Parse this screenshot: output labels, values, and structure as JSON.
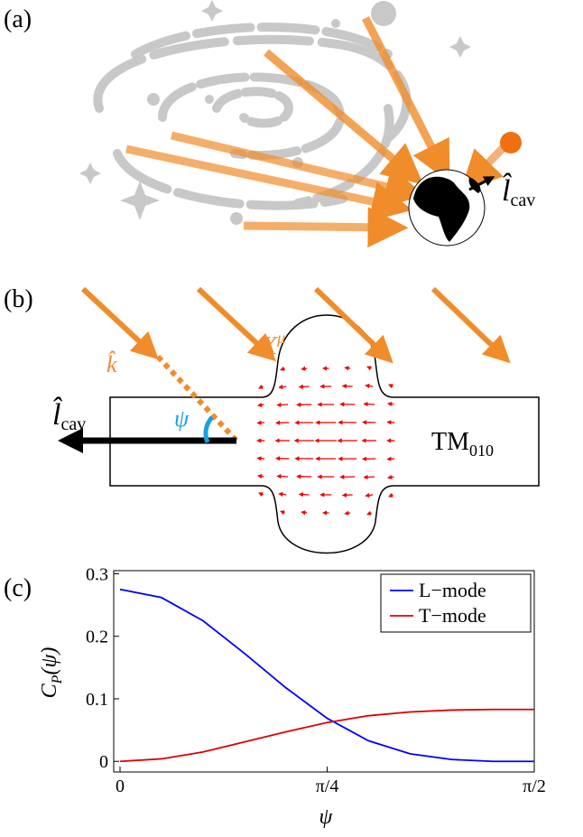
{
  "panel_a": {
    "label": "(a)",
    "l_hat": "l̂",
    "l_sub": "cav"
  },
  "panel_b": {
    "label": "(b)",
    "x": "X",
    "x_sup": "μ",
    "k_hat": "k̂",
    "psi": "ψ",
    "l_hat": "l̂",
    "l_sub": "cav",
    "mode": "TM",
    "mode_sub": "010"
  },
  "chart_data": {
    "type": "line",
    "panel_label": "(c)",
    "y_label": "C",
    "y_label_sub": "P",
    "y_label_rest": "(ψ)",
    "x_label": "ψ",
    "x": [
      0,
      0.157,
      0.314,
      0.471,
      0.628,
      0.785,
      0.942,
      1.1,
      1.257,
      1.414,
      1.571
    ],
    "series": [
      {
        "name": "L−mode",
        "color": "#0000ff",
        "values": [
          0.275,
          0.262,
          0.225,
          0.173,
          0.118,
          0.069,
          0.033,
          0.012,
          0.003,
          0,
          0
        ]
      },
      {
        "name": "T−mode",
        "color": "#e00000",
        "values": [
          0,
          0.004,
          0.015,
          0.031,
          0.047,
          0.062,
          0.073,
          0.079,
          0.082,
          0.083,
          0.083
        ]
      }
    ],
    "xlim": [
      -0.024,
      1.5708
    ],
    "ylim": [
      -0.017,
      0.305
    ],
    "xticks": [
      0,
      {
        "value": 0.7854,
        "label": "π/4"
      },
      {
        "value": 1.5708,
        "label": "π/2"
      }
    ],
    "yticks": [
      0,
      0.1,
      0.2,
      0.3
    ],
    "legend": "upper right"
  }
}
